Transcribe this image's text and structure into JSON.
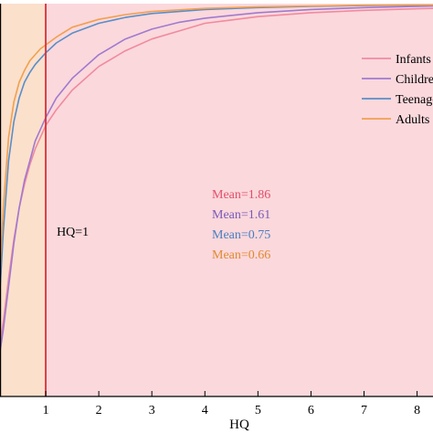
{
  "chart_data": {
    "type": "line",
    "title": "",
    "xlabel": "HQ",
    "ylabel": "",
    "xlim": [
      0,
      8.3
    ],
    "ylim": [
      0,
      1
    ],
    "x_ticks": [
      0,
      1,
      2,
      3,
      4,
      5,
      6,
      7,
      8
    ],
    "x_tick_labels": [
      "0",
      "1",
      "2",
      "3",
      "4",
      "5",
      "6",
      "7",
      "8"
    ],
    "grid": false,
    "legend_position": "right",
    "series": [
      {
        "name": "Infants",
        "color": "#f08aa0",
        "x": [
          0,
          0.1,
          0.2,
          0.3,
          0.4,
          0.5,
          0.6,
          0.7,
          0.8,
          0.9,
          1.0,
          1.2,
          1.5,
          2.0,
          2.5,
          3.0,
          3.5,
          4.0,
          5.0,
          6.0,
          7.0,
          8.0,
          8.3
        ],
        "y": [
          0.05,
          0.1,
          0.19,
          0.3,
          0.4,
          0.48,
          0.54,
          0.59,
          0.63,
          0.66,
          0.69,
          0.73,
          0.78,
          0.84,
          0.88,
          0.91,
          0.93,
          0.95,
          0.967,
          0.977,
          0.983,
          0.987,
          0.988
        ]
      },
      {
        "name": "Children",
        "color": "#a07ad0",
        "x": [
          0,
          0.1,
          0.2,
          0.3,
          0.4,
          0.5,
          0.6,
          0.7,
          0.8,
          0.9,
          1.0,
          1.2,
          1.5,
          2.0,
          2.5,
          3.0,
          3.5,
          4.0,
          5.0,
          6.0,
          7.0,
          8.0,
          8.3
        ],
        "y": [
          0.03,
          0.08,
          0.17,
          0.28,
          0.39,
          0.48,
          0.55,
          0.6,
          0.65,
          0.68,
          0.71,
          0.76,
          0.81,
          0.87,
          0.91,
          0.935,
          0.952,
          0.963,
          0.977,
          0.985,
          0.99,
          0.993,
          0.994
        ]
      },
      {
        "name": "Teenagers",
        "color": "#5a8ec8",
        "x": [
          0,
          0.05,
          0.1,
          0.2,
          0.3,
          0.4,
          0.5,
          0.6,
          0.7,
          0.8,
          0.9,
          1.0,
          1.2,
          1.5,
          2.0,
          2.5,
          3.0,
          4.0,
          5.0,
          6.0,
          7.0,
          8.0,
          8.3
        ],
        "y": [
          0.03,
          0.08,
          0.18,
          0.42,
          0.6,
          0.7,
          0.76,
          0.8,
          0.825,
          0.845,
          0.86,
          0.875,
          0.9,
          0.925,
          0.95,
          0.965,
          0.975,
          0.985,
          0.99,
          0.993,
          0.995,
          0.996,
          0.997
        ]
      },
      {
        "name": "Adults",
        "color": "#f0a050",
        "x": [
          0,
          0.05,
          0.1,
          0.2,
          0.3,
          0.4,
          0.5,
          0.6,
          0.7,
          0.8,
          0.9,
          1.0,
          1.2,
          1.5,
          2.0,
          2.5,
          3.0,
          4.0,
          5.0,
          6.0,
          7.0,
          8.0,
          8.3
        ],
        "y": [
          0.03,
          0.1,
          0.22,
          0.48,
          0.66,
          0.75,
          0.8,
          0.83,
          0.855,
          0.87,
          0.885,
          0.895,
          0.915,
          0.94,
          0.96,
          0.972,
          0.98,
          0.988,
          0.992,
          0.994,
          0.996,
          0.997,
          0.997
        ]
      }
    ],
    "reference_line": {
      "x": 1,
      "label": "HQ=1",
      "color": "#d8303a"
    },
    "regions": [
      {
        "from": 0,
        "to": 1,
        "color": "#fbe0cc"
      },
      {
        "from": 1,
        "to": 8.3,
        "color": "#fbd8dc"
      }
    ],
    "annotations": [
      {
        "text": "Mean=1.86",
        "color": "#e0506a"
      },
      {
        "text": "Mean=1.61",
        "color": "#7a5ab8"
      },
      {
        "text": "Mean=0.75",
        "color": "#4a7ec0"
      },
      {
        "text": "Mean=0.66",
        "color": "#e08a30"
      }
    ]
  }
}
